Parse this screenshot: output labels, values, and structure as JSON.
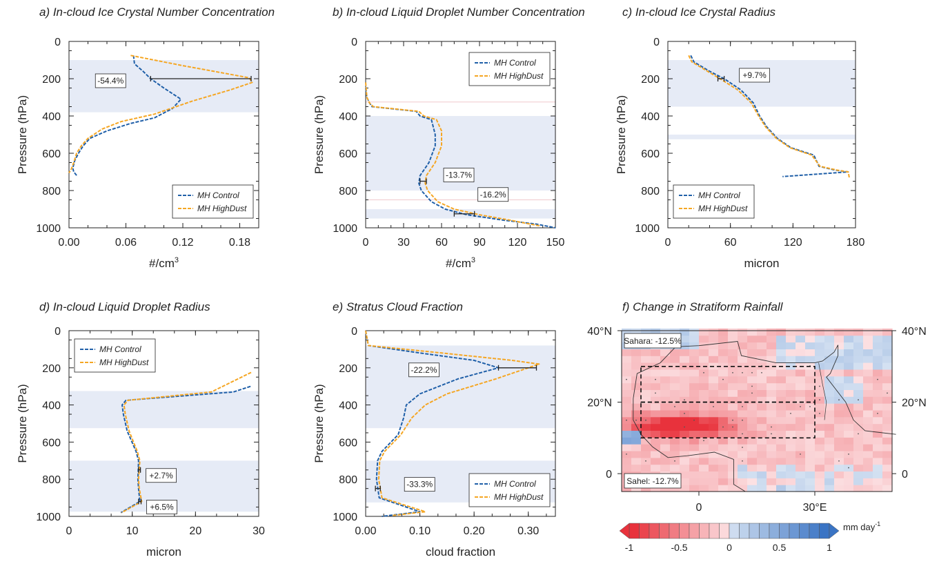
{
  "chart_data": [
    {
      "panel": "a",
      "type": "line",
      "title": "a) In-cloud Ice Crystal Number Concentration",
      "xlabel": "#/cm³",
      "ylabel": "Pressure (hPa)",
      "xlim": [
        0,
        0.2
      ],
      "ylim": [
        1000,
        0
      ],
      "xticks": [
        "0.00",
        "0.06",
        "0.12",
        "0.18"
      ],
      "xtick_values": [
        0,
        0.06,
        0.12,
        0.18
      ],
      "yticks": [
        "0",
        "200",
        "400",
        "600",
        "800",
        "1000"
      ],
      "shaded_bands": [
        [
          100,
          380
        ]
      ],
      "legend": {
        "position": "bottom-right",
        "entries": [
          "MH Control",
          "MH HighDust"
        ]
      },
      "annotations": [
        {
          "text": "-54.4%",
          "p": 200,
          "x1": 0.086,
          "x2": 0.192
        }
      ],
      "series": [
        {
          "name": "MH Control",
          "color": "#1f5fa8",
          "x": [
            0.068,
            0.069,
            0.078,
            0.086,
            0.1,
            0.118,
            0.109,
            0.09,
            0.065,
            0.04,
            0.022,
            0.015,
            0.01,
            0.006,
            0.004,
            0.005,
            0.009
          ],
          "y": [
            75,
            120,
            160,
            200,
            250,
            310,
            360,
            410,
            440,
            480,
            520,
            560,
            600,
            640,
            680,
            700,
            725
          ]
        },
        {
          "name": "MH HighDust",
          "color": "#f5a623",
          "x": [
            0.065,
            0.12,
            0.19,
            0.193,
            0.17,
            0.13,
            0.09,
            0.055,
            0.035,
            0.02,
            0.013,
            0.008,
            0.005,
            0.002,
            0.0
          ],
          "y": [
            75,
            130,
            195,
            220,
            260,
            320,
            390,
            430,
            470,
            520,
            560,
            600,
            650,
            690,
            705
          ]
        }
      ]
    },
    {
      "panel": "b",
      "type": "line",
      "title": "b) In-cloud Liquid Droplet Number Concentration",
      "xlabel": "#/cm³",
      "ylabel": "Pressure (hPa)",
      "xlim": [
        0,
        150
      ],
      "ylim": [
        1000,
        0
      ],
      "xticks": [
        "0",
        "30",
        "60",
        "90",
        "120",
        "150"
      ],
      "xtick_values": [
        0,
        30,
        60,
        90,
        120,
        150
      ],
      "yticks": [
        "0",
        "200",
        "400",
        "600",
        "800",
        "1000"
      ],
      "shaded_bands": [
        [
          400,
          800
        ],
        [
          900,
          950
        ]
      ],
      "thin_lines": [
        325,
        850
      ],
      "legend": {
        "position": "top-right",
        "entries": [
          "MH Control",
          "MH HighDust"
        ]
      },
      "annotations": [
        {
          "text": "-13.7%",
          "p": 750,
          "x1": 43,
          "x2": 48
        },
        {
          "text": "-16.2%",
          "p": 925,
          "x1": 70,
          "x2": 86
        }
      ],
      "series": [
        {
          "name": "MH Control",
          "color": "#1f5fa8",
          "x": [
            0,
            1,
            3,
            5,
            40,
            43,
            52,
            55,
            55,
            50,
            43,
            42,
            44,
            52,
            63,
            80,
            110,
            135,
            150
          ],
          "y": [
            250,
            300,
            330,
            350,
            375,
            400,
            420,
            500,
            560,
            650,
            720,
            760,
            800,
            860,
            900,
            930,
            960,
            980,
            1000
          ]
        },
        {
          "name": "MH HighDust",
          "color": "#f5a623",
          "x": [
            0,
            1,
            3,
            6,
            42,
            46,
            56,
            60,
            60,
            55,
            48,
            47,
            49,
            57,
            70,
            90,
            115,
            130,
            138
          ],
          "y": [
            220,
            300,
            330,
            350,
            375,
            400,
            420,
            480,
            560,
            650,
            720,
            760,
            800,
            860,
            900,
            930,
            960,
            980,
            990
          ]
        }
      ]
    },
    {
      "panel": "c",
      "type": "line",
      "title": "c) In-cloud Ice Crystal Radius",
      "xlabel": "micron",
      "ylabel": "Pressure (hPa)",
      "xlim": [
        0,
        180
      ],
      "ylim": [
        1000,
        0
      ],
      "xticks": [
        "0",
        "60",
        "120",
        "180"
      ],
      "xtick_values": [
        0,
        60,
        120,
        180
      ],
      "yticks": [
        "0",
        "200",
        "400",
        "600",
        "800",
        "1000"
      ],
      "shaded_bands": [
        [
          100,
          350
        ],
        [
          500,
          525
        ]
      ],
      "legend": {
        "position": "bottom-left",
        "entries": [
          "MH Control",
          "MH HighDust"
        ]
      },
      "annotations": [
        {
          "text": "+9.7%",
          "p": 200,
          "x1": 48,
          "x2": 54
        }
      ],
      "series": [
        {
          "name": "MH Control",
          "color": "#1f5fa8",
          "x": [
            22,
            25,
            40,
            54,
            70,
            82,
            88,
            95,
            105,
            118,
            140,
            145,
            160,
            173,
            110
          ],
          "y": [
            75,
            110,
            160,
            200,
            260,
            330,
            400,
            460,
            520,
            570,
            610,
            670,
            690,
            700,
            725
          ]
        },
        {
          "name": "MH HighDust",
          "color": "#f5a623",
          "x": [
            20,
            23,
            38,
            50,
            67,
            80,
            87,
            94,
            104,
            117,
            138,
            146,
            162,
            173,
            174
          ],
          "y": [
            75,
            110,
            160,
            200,
            260,
            330,
            400,
            460,
            520,
            570,
            610,
            670,
            690,
            700,
            730
          ]
        }
      ]
    },
    {
      "panel": "d",
      "type": "line",
      "title": "d) In-cloud Liquid Droplet Radius",
      "xlabel": "micron",
      "ylabel": "Pressure (hPa)",
      "xlim": [
        0,
        30
      ],
      "ylim": [
        1000,
        0
      ],
      "xticks": [
        "0",
        "10",
        "20",
        "30"
      ],
      "xtick_values": [
        0,
        10,
        20,
        30
      ],
      "yticks": [
        "0",
        "200",
        "400",
        "600",
        "800",
        "1000"
      ],
      "shaded_bands": [
        [
          325,
          525
        ],
        [
          700,
          975
        ]
      ],
      "legend": {
        "position": "top-left",
        "entries": [
          "MH Control",
          "MH HighDust"
        ]
      },
      "annotations": [
        {
          "text": "+2.7%",
          "p": 750,
          "x1": 11,
          "x2": 11.3
        },
        {
          "text": "+6.5%",
          "p": 920,
          "x1": 11,
          "x2": 11.4
        }
      ],
      "series": [
        {
          "name": "MH Control",
          "color": "#1f5fa8",
          "x": [
            28.7,
            26,
            9,
            8.4,
            8.6,
            9.2,
            10.6,
            11,
            10.9,
            11,
            11.2,
            8.2
          ],
          "y": [
            300,
            330,
            375,
            400,
            450,
            540,
            650,
            700,
            800,
            850,
            920,
            980
          ]
        },
        {
          "name": "MH HighDust",
          "color": "#f5a623",
          "x": [
            28.8,
            22.5,
            9.3,
            8.7,
            8.9,
            9.5,
            10.8,
            11.2,
            11,
            11.1,
            11.5,
            8.3
          ],
          "y": [
            225,
            330,
            375,
            400,
            450,
            540,
            650,
            700,
            800,
            850,
            920,
            980
          ]
        }
      ]
    },
    {
      "panel": "e",
      "type": "line",
      "title": "e) Stratus Cloud Fraction",
      "xlabel": "cloud fraction",
      "ylabel": "Pressure (hPa)",
      "xlim": [
        0,
        0.35
      ],
      "ylim": [
        1000,
        0
      ],
      "xticks": [
        "0.00",
        "0.10",
        "0.20",
        "0.30"
      ],
      "xtick_values": [
        0,
        0.1,
        0.2,
        0.3
      ],
      "yticks": [
        "0",
        "200",
        "400",
        "600",
        "800",
        "1000"
      ],
      "shaded_bands": [
        [
          80,
          525
        ],
        [
          700,
          925
        ]
      ],
      "legend": {
        "position": "bottom-right",
        "entries": [
          "MH Control",
          "MH HighDust"
        ]
      },
      "annotations": [
        {
          "text": "-22.2%",
          "p": 200,
          "x1": 0.245,
          "x2": 0.315
        },
        {
          "text": "-33.3%",
          "p": 850,
          "x1": 0.018,
          "x2": 0.027
        }
      ],
      "series": [
        {
          "name": "MH Control",
          "color": "#1f5fa8",
          "x": [
            0.0,
            0.005,
            0.1,
            0.2,
            0.245,
            0.17,
            0.1,
            0.075,
            0.07,
            0.06,
            0.03,
            0.022,
            0.02,
            0.025,
            0.1,
            0.03
          ],
          "y": [
            0,
            80,
            120,
            160,
            200,
            260,
            340,
            400,
            470,
            560,
            650,
            700,
            800,
            900,
            975,
            1000
          ]
        },
        {
          "name": "MH HighDust",
          "color": "#f5a623",
          "x": [
            0.0,
            0.005,
            0.14,
            0.27,
            0.32,
            0.24,
            0.15,
            0.11,
            0.085,
            0.065,
            0.035,
            0.026,
            0.024,
            0.03,
            0.11,
            0.05
          ],
          "y": [
            0,
            80,
            120,
            160,
            180,
            260,
            340,
            400,
            470,
            560,
            650,
            700,
            800,
            900,
            975,
            995
          ]
        }
      ]
    },
    {
      "panel": "f",
      "type": "heatmap",
      "title": "f) Change in Stratiform Rainfall",
      "lat_labels_left": [
        "40°N",
        "20°N",
        "0"
      ],
      "lat_labels_right": [
        "40°N",
        "20°N",
        "0"
      ],
      "lat_values": [
        40,
        20,
        0
      ],
      "lon_labels": [
        "0",
        "30°E"
      ],
      "lon_values": [
        0,
        30
      ],
      "lat_range": [
        -5,
        40
      ],
      "lon_range": [
        -20,
        50
      ],
      "regions": [
        {
          "name": "Sahara",
          "label": "Sahara: -12.5%",
          "lat": [
            20,
            30
          ],
          "lon": [
            -15,
            30
          ]
        },
        {
          "name": "Sahel",
          "label": "Sahel: -12.7%",
          "lat": [
            10,
            20
          ],
          "lon": [
            -15,
            30
          ]
        }
      ],
      "colorbar": {
        "ticks": [
          "-1",
          "-0.5",
          "0",
          "0.5",
          "1"
        ],
        "tick_values": [
          -1,
          -0.5,
          0,
          0.5,
          1
        ],
        "unit": "mm day",
        "unit_exp": "-1",
        "negative_color": "#e8323c",
        "positive_color": "#3a74c4",
        "levels": 20
      }
    }
  ]
}
